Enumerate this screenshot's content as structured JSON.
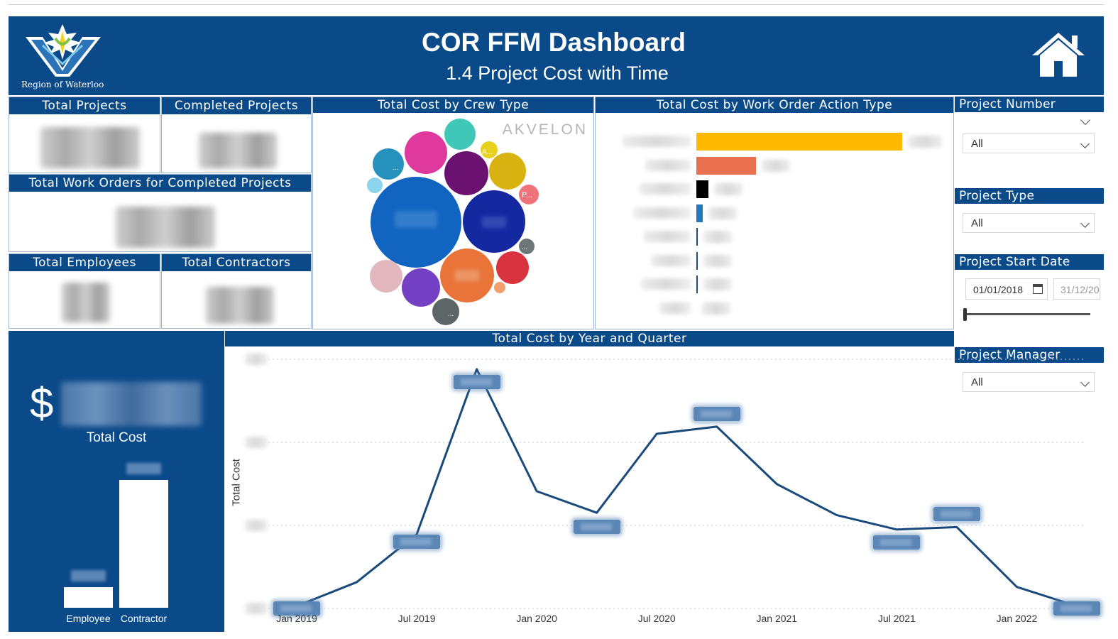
{
  "header": {
    "logo_text": "Region of Waterloo",
    "title": "COR FFM Dashboard",
    "subtitle": "1.4 Project Cost with Time",
    "home_icon": "home-icon"
  },
  "kpis": {
    "total_projects": "Total Projects",
    "completed_projects": "Completed Projects",
    "total_work_orders": "Total Work Orders for Completed Projects",
    "total_employees": "Total Employees",
    "total_contractors": "Total Contractors"
  },
  "crew_chart": {
    "title": "Total Cost by Crew Type",
    "watermark": "AKVELON",
    "bubble_labels": [
      "A...",
      "P...",
      "...",
      "...",
      "..."
    ]
  },
  "work_order_chart": {
    "title": "Total Cost by Work Order Action Type",
    "bar_colors": [
      "#ffb900",
      "#e8704f",
      "#000000",
      "#1f78c1",
      "#1f4e79",
      "#1f4e79",
      "#1f4e79",
      "#cfcfcf"
    ],
    "bar_values": [
      1.0,
      0.29,
      0.06,
      0.03,
      0.008,
      0.008,
      0.008,
      0.0
    ]
  },
  "filters": {
    "project_number": {
      "label": "Project Number",
      "value": "All"
    },
    "project_type": {
      "label": "Project Type",
      "value": "All"
    },
    "project_start_date": {
      "label": "Project Start Date",
      "start": "01/01/2018",
      "end": "31/12/20"
    },
    "project_manager": {
      "label": "Project Manager",
      "value": "All"
    }
  },
  "total_cost": {
    "currency": "$",
    "label": "Total Cost",
    "categories": [
      "Employee",
      "Contractor"
    ],
    "values": [
      0.16,
      1.0
    ]
  },
  "chart_data": {
    "type": "line",
    "title": "Total Cost by Year and Quarter",
    "xlabel": "",
    "ylabel": "Total Cost",
    "x_ticks": [
      "Jan 2019",
      "Jul 2019",
      "Jan 2020",
      "Jul 2020",
      "Jan 2021",
      "Jul 2021",
      "Jan 2022"
    ],
    "x": [
      "Jan 2019",
      "Apr 2019",
      "Jul 2019",
      "Oct 2019",
      "Jan 2020",
      "Apr 2020",
      "Jul 2020",
      "Oct 2020",
      "Jan 2021",
      "Apr 2021",
      "Jul 2021",
      "Oct 2021",
      "Jan 2022",
      "Apr 2022"
    ],
    "y_fraction": [
      0.01,
      0.11,
      0.31,
      1.0,
      0.49,
      0.4,
      0.73,
      0.76,
      0.52,
      0.39,
      0.33,
      0.34,
      0.09,
      0.01
    ],
    "y_axis_note": "y values are relative; actual values obscured in source",
    "series_color": "#1a4a7c",
    "grid": true
  }
}
